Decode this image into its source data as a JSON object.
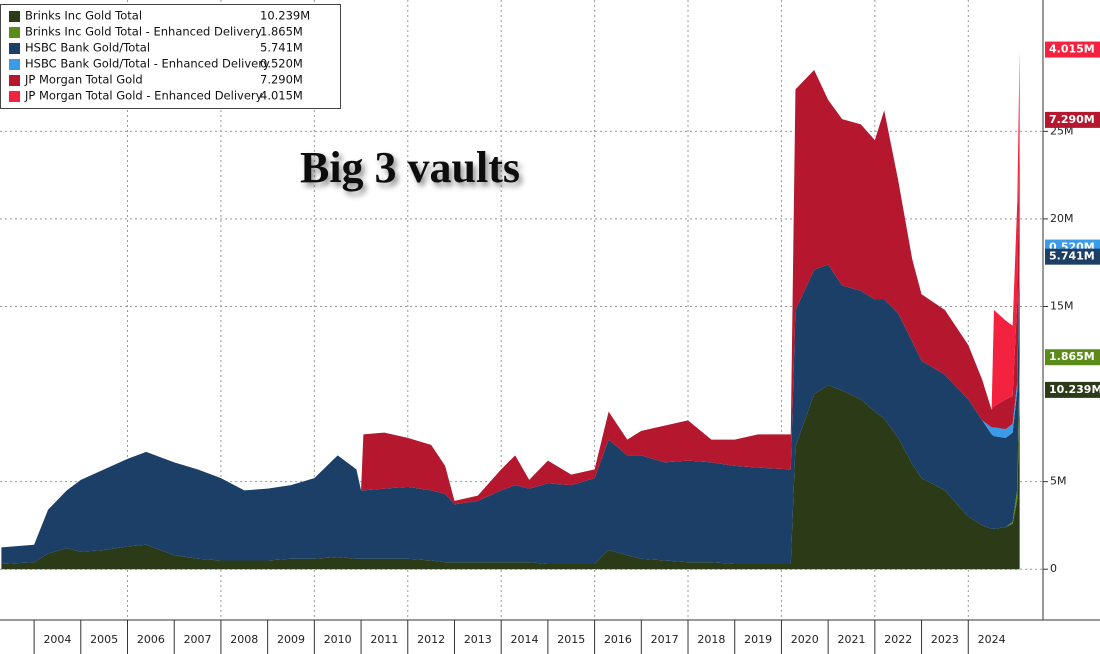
{
  "chart_data": {
    "type": "area",
    "stacked": true,
    "annotation": "Big 3 vaults",
    "legend_position": "top-left",
    "grid": true,
    "xlim": [
      2003.27,
      2025.6
    ],
    "xticks": [
      2004,
      2005,
      2006,
      2007,
      2008,
      2009,
      2010,
      2011,
      2012,
      2013,
      2014,
      2015,
      2016,
      2017,
      2018,
      2019,
      2020,
      2021,
      2022,
      2023,
      2024
    ],
    "ylim": [
      -2.9,
      32.5
    ],
    "yticks": [
      0,
      {
        "value": 5,
        "label": "5M"
      },
      {
        "value": 15,
        "label": "15M"
      },
      {
        "value": 20,
        "label": "20M"
      },
      {
        "value": 25,
        "label": "25M"
      }
    ],
    "x": [
      2003.3,
      2004.0,
      2004.3,
      2004.7,
      2005.0,
      2005.5,
      2006.0,
      2006.4,
      2007.0,
      2007.5,
      2008.0,
      2008.5,
      2009.0,
      2009.5,
      2010.0,
      2010.5,
      2010.9,
      2011.0,
      2011.05,
      2011.5,
      2012.0,
      2012.5,
      2012.8,
      2013.0,
      2013.5,
      2014.0,
      2014.3,
      2014.6,
      2015.0,
      2015.5,
      2016.0,
      2016.3,
      2016.7,
      2017.0,
      2017.5,
      2018.0,
      2018.5,
      2019.0,
      2019.5,
      2020.2,
      2020.3,
      2020.7,
      2021.0,
      2021.3,
      2021.7,
      2022.0,
      2022.2,
      2022.5,
      2022.8,
      2023.0,
      2023.5,
      2024.0,
      2024.3,
      2024.5,
      2024.55,
      2024.8,
      2024.95,
      2025.05,
      2025.1
    ],
    "series": [
      {
        "name": "Brinks Inc Gold Total",
        "color": "#2b3a17",
        "value_label": "10.239M",
        "values": [
          0.3,
          0.4,
          0.9,
          1.2,
          1.0,
          1.1,
          1.3,
          1.4,
          0.8,
          0.6,
          0.5,
          0.5,
          0.5,
          0.6,
          0.6,
          0.7,
          0.6,
          0.6,
          0.6,
          0.6,
          0.6,
          0.5,
          0.4,
          0.4,
          0.4,
          0.4,
          0.4,
          0.4,
          0.3,
          0.3,
          0.3,
          1.1,
          0.8,
          0.6,
          0.5,
          0.4,
          0.4,
          0.3,
          0.3,
          0.3,
          7.0,
          10.0,
          10.5,
          10.2,
          9.7,
          9.0,
          8.6,
          7.5,
          6.0,
          5.2,
          4.5,
          3.0,
          2.5,
          2.3,
          2.3,
          2.4,
          2.6,
          4.0,
          10.239
        ]
      },
      {
        "name": "Brinks Inc Gold Total - Enhanced Delivery",
        "color": "#5b8c1a",
        "value_label": "1.865M",
        "values": [
          0,
          0,
          0,
          0,
          0,
          0,
          0,
          0,
          0,
          0,
          0,
          0,
          0,
          0,
          0,
          0,
          0,
          0,
          0,
          0,
          0,
          0,
          0,
          0,
          0,
          0,
          0,
          0,
          0,
          0,
          0,
          0,
          0,
          0,
          0,
          0,
          0,
          0,
          0,
          0,
          0,
          0,
          0,
          0,
          0,
          0,
          0,
          0,
          0,
          0,
          0,
          0,
          0,
          0,
          0,
          0,
          0.1,
          0.6,
          1.865
        ]
      },
      {
        "name": "HSBC Bank Gold/Total",
        "color": "#1b3f66",
        "value_label": "5.741M",
        "values": [
          0.95,
          1.0,
          2.5,
          3.3,
          4.1,
          4.6,
          5.0,
          5.3,
          5.3,
          5.1,
          4.7,
          4.0,
          4.1,
          4.2,
          4.6,
          5.8,
          5.1,
          3.9,
          3.9,
          4.0,
          4.1,
          4.0,
          3.9,
          3.3,
          3.5,
          4.1,
          4.4,
          4.2,
          4.6,
          4.5,
          4.9,
          6.3,
          5.7,
          5.9,
          5.6,
          5.8,
          5.7,
          5.6,
          5.5,
          5.4,
          7.8,
          7.1,
          6.9,
          6.0,
          6.2,
          6.4,
          6.8,
          7.1,
          7.0,
          6.7,
          6.6,
          6.7,
          6.0,
          5.4,
          5.3,
          5.1,
          5.1,
          5.6,
          5.741
        ]
      },
      {
        "name": "HSBC Bank Gold/Total - Enhanced Delivery",
        "color": "#3a9be8",
        "value_label": "0.520M",
        "values": [
          0,
          0,
          0,
          0,
          0,
          0,
          0,
          0,
          0,
          0,
          0,
          0,
          0,
          0,
          0,
          0,
          0,
          0,
          0,
          0,
          0,
          0,
          0,
          0,
          0,
          0,
          0,
          0,
          0,
          0,
          0,
          0,
          0,
          0,
          0,
          0,
          0,
          0,
          0,
          0,
          0,
          0,
          0,
          0,
          0,
          0,
          0,
          0,
          0,
          0,
          0,
          0,
          0,
          0.4,
          0.5,
          0.5,
          0.5,
          0.5,
          0.52
        ]
      },
      {
        "name": "JP Morgan Total Gold",
        "color": "#b5172f",
        "value_label": "7.290M",
        "values": [
          0,
          0,
          0,
          0,
          0,
          0,
          0,
          0,
          0,
          0,
          0,
          0,
          0,
          0,
          0,
          0,
          0,
          0,
          3.2,
          3.2,
          2.8,
          2.6,
          1.6,
          0.2,
          0.3,
          1.2,
          1.7,
          0.5,
          1.3,
          0.6,
          0.5,
          1.6,
          0.9,
          1.4,
          2.1,
          2.3,
          1.3,
          1.5,
          1.9,
          2.0,
          12.6,
          11.4,
          9.4,
          9.5,
          9.5,
          9.1,
          10.8,
          7.6,
          4.7,
          3.8,
          3.7,
          3.1,
          2.3,
          1.0,
          1.2,
          1.7,
          1.6,
          4.7,
          7.29
        ]
      },
      {
        "name": "JP Morgan Total Gold - Enhanced Delivery",
        "color": "#f3223f",
        "value_label": "4.015M",
        "values": [
          0,
          0,
          0,
          0,
          0,
          0,
          0,
          0,
          0,
          0,
          0,
          0,
          0,
          0,
          0,
          0,
          0,
          0,
          0,
          0,
          0,
          0,
          0,
          0,
          0,
          0,
          0,
          0,
          0,
          0,
          0,
          0,
          0,
          0,
          0,
          0,
          0,
          0,
          0,
          0,
          0,
          0,
          0,
          0,
          0,
          0,
          0,
          0,
          0,
          0,
          0,
          0,
          0,
          0,
          5.5,
          4.5,
          4.0,
          5.6,
          4.015
        ]
      }
    ]
  }
}
